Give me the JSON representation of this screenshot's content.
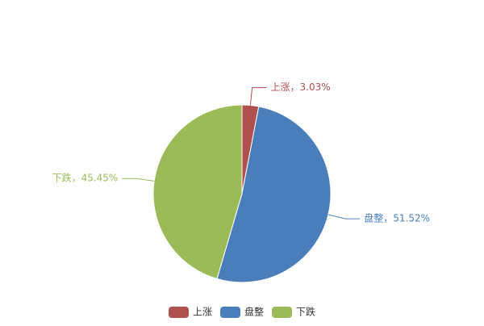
{
  "chart_data": {
    "type": "pie",
    "categories": [
      "上涨",
      "盘整",
      "下跌"
    ],
    "values": [
      3.03,
      51.52,
      45.45
    ],
    "value_labels": [
      "上涨，3.03%",
      "盘整，51.52%",
      "下跌，45.45%"
    ],
    "colors": [
      "#b0504f",
      "#4a7ebb",
      "#9bbb59"
    ],
    "legend": "bottom"
  }
}
